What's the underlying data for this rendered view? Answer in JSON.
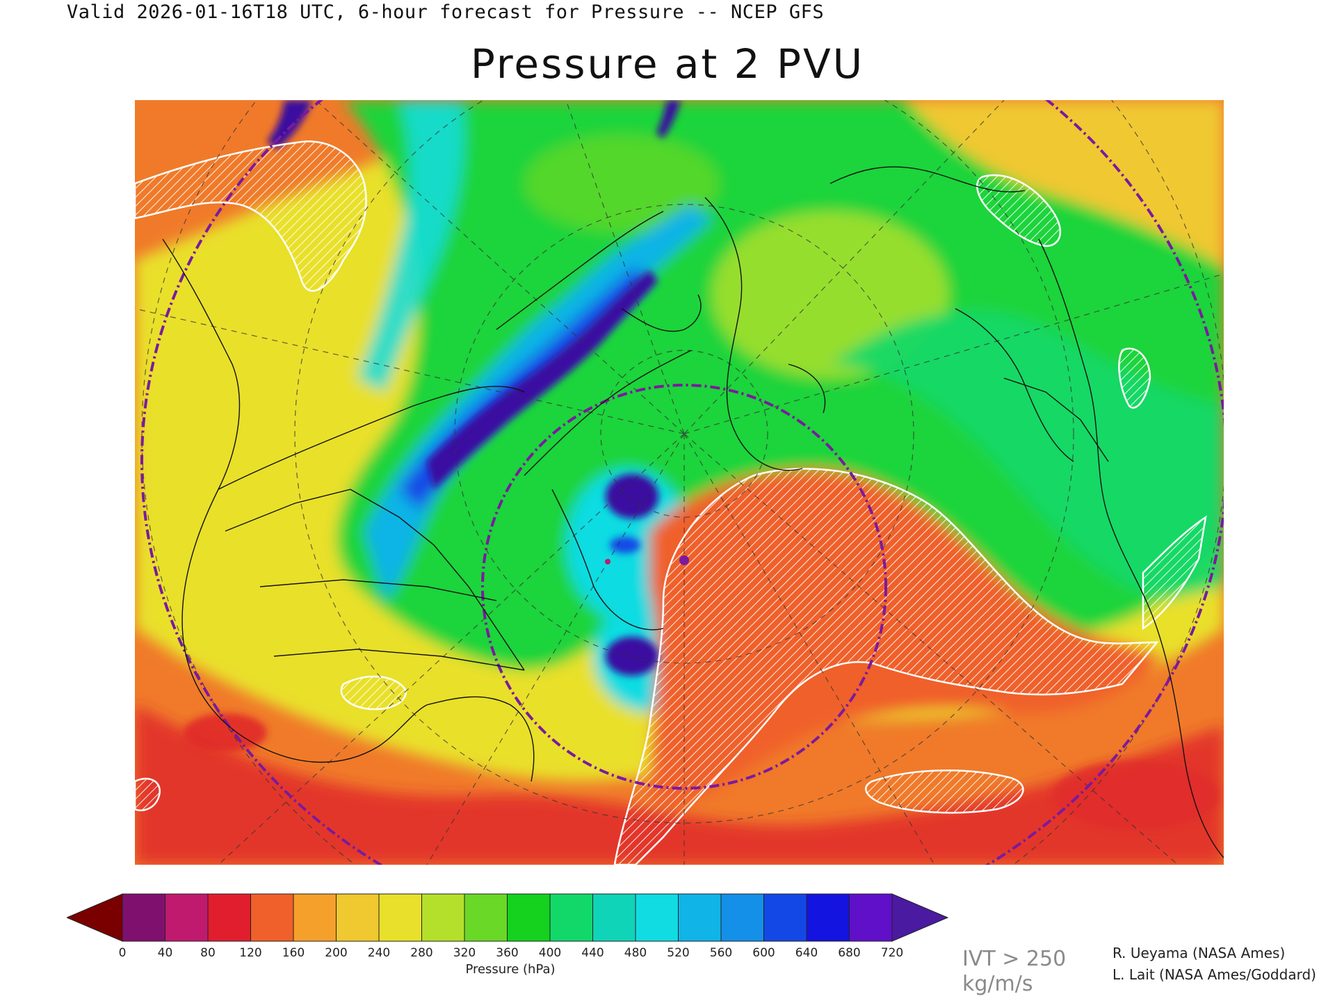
{
  "header": {
    "valid_line": "Valid 2026-01-16T18 UTC, 6-hour forecast for Pressure -- NCEP GFS",
    "title": "Pressure at 2 PVU"
  },
  "map": {
    "field_colors": {
      "high_pressure_orange": "#f07a2a",
      "warm_yellow": "#e9e02c",
      "green": "#1ed43a",
      "cyan": "#13c8d8",
      "blue": "#1448e6",
      "deep_purple": "#3a0aa0",
      "red": "#e02a2a",
      "white_hatch": "#ffffff"
    }
  },
  "colorbar": {
    "colors": [
      "#7a0000",
      "#80106e",
      "#c01a6e",
      "#e01e2e",
      "#f0602a",
      "#f5a02a",
      "#f0c830",
      "#e9e02c",
      "#b4e02c",
      "#6ad826",
      "#14d21e",
      "#12d86a",
      "#10d4b8",
      "#10dce2",
      "#10b4e6",
      "#1490e8",
      "#1448e6",
      "#1414e0",
      "#6010c8",
      "#4a1aa0"
    ],
    "tick_labels": [
      "0",
      "40",
      "80",
      "120",
      "160",
      "200",
      "240",
      "280",
      "320",
      "360",
      "400",
      "440",
      "480",
      "520",
      "560",
      "600",
      "640",
      "680",
      "720"
    ],
    "units_label": "Pressure (hPa)"
  },
  "footer": {
    "ivt_line1": "IVT > 250",
    "ivt_line2": "kg/m/s",
    "credit1": "R. Ueyama (NASA Ames)",
    "credit2": "L. Lait (NASA Ames/Goddard)"
  }
}
